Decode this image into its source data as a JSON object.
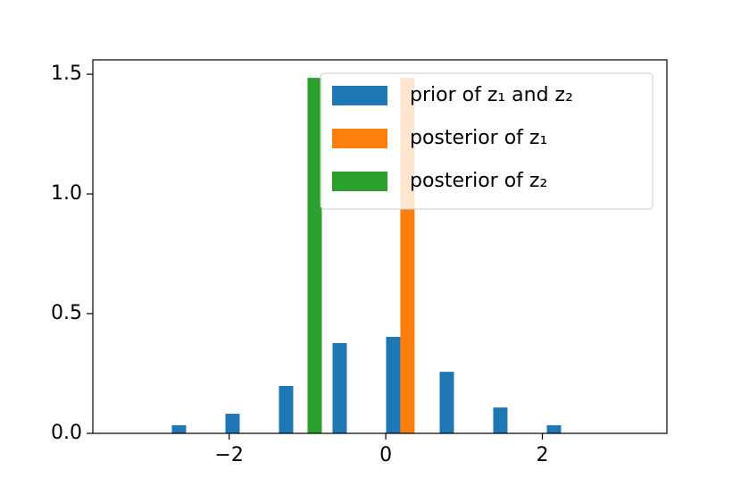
{
  "chart_data": {
    "type": "histogram",
    "bins": [
      -2.8,
      -2.116,
      -1.432,
      -0.748,
      -0.064,
      0.62,
      1.304,
      1.988,
      2.672
    ],
    "series": [
      {
        "name": "prior of z₁ and z₂",
        "color": "#1f77b4",
        "values": [
          0.034,
          0.082,
          0.198,
          0.377,
          0.403,
          0.257,
          0.108,
          0.034
        ]
      },
      {
        "name": "posterior of z₁",
        "color": "#ff7f0e",
        "values": [
          0,
          0,
          0,
          0,
          1.485,
          0,
          0,
          0
        ]
      },
      {
        "name": "posterior of z₂",
        "color": "#2ca02c",
        "values": [
          0,
          0,
          1.485,
          0,
          0,
          0,
          0,
          0
        ]
      }
    ],
    "xlim": [
      -3.74,
      3.59
    ],
    "ylim": [
      0,
      1.56
    ],
    "xticks": [
      {
        "value": -2,
        "label": "−2"
      },
      0,
      2
    ],
    "yticks": [
      {
        "value": 0,
        "label": "0.0"
      },
      {
        "value": 0.5,
        "label": "0.5"
      },
      {
        "value": 1,
        "label": "1.0"
      },
      {
        "value": 1.5,
        "label": "1.5"
      }
    ],
    "legend": "upper right"
  }
}
